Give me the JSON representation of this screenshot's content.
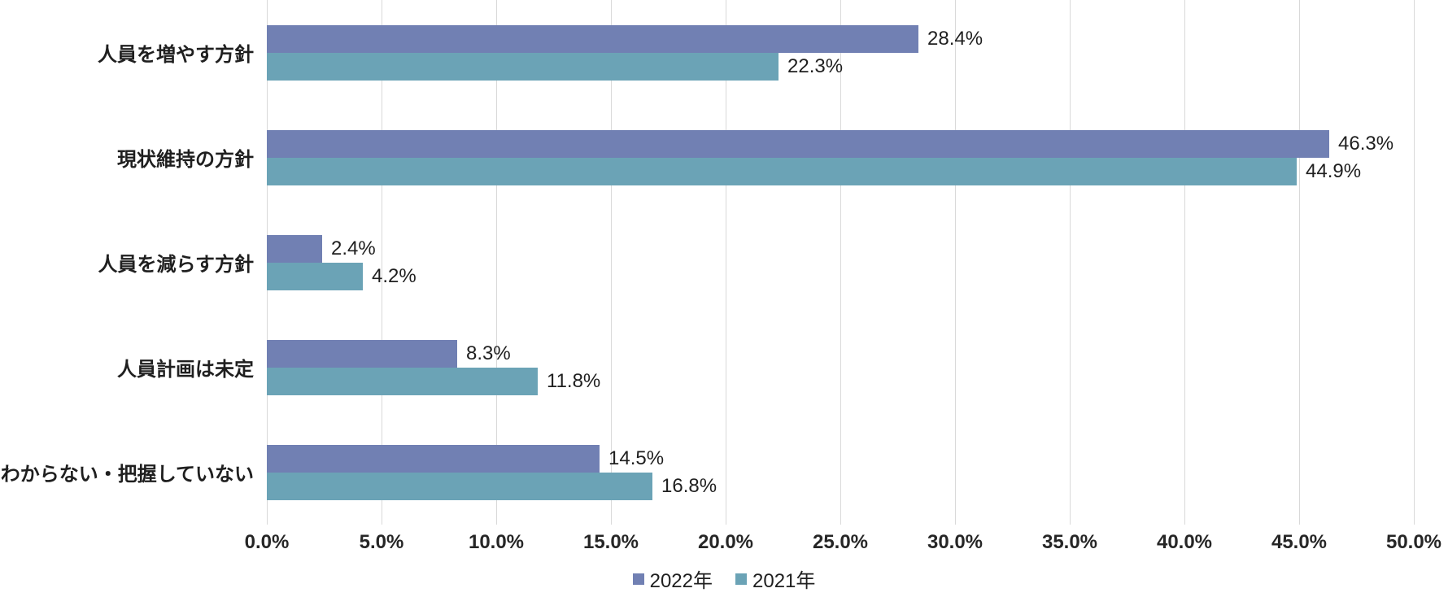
{
  "chart_data": {
    "type": "bar",
    "orientation": "horizontal",
    "title": "",
    "xlabel": "",
    "ylabel": "",
    "categories": [
      "人員を増やす方針",
      "現状維持の方針",
      "人員を減らす方針",
      "人員計画は未定",
      "わからない・把握していない"
    ],
    "series": [
      {
        "name": "2022年",
        "color": "#7180B3",
        "values": [
          28.4,
          46.3,
          2.4,
          8.3,
          14.5
        ]
      },
      {
        "name": "2021年",
        "color": "#6BA3B6",
        "values": [
          22.3,
          44.9,
          4.2,
          11.8,
          16.8
        ]
      }
    ],
    "data_labels": {
      "2022": [
        "28.4%",
        "46.3%",
        "2.4%",
        "8.3%",
        "14.5%"
      ],
      "2021": [
        "22.3%",
        "44.9%",
        "4.2%",
        "11.8%",
        "16.8%"
      ]
    },
    "value_suffix": "%",
    "xlim": [
      0,
      50
    ],
    "x_ticks": [
      "0.0%",
      "5.0%",
      "10.0%",
      "15.0%",
      "20.0%",
      "25.0%",
      "30.0%",
      "35.0%",
      "40.0%",
      "45.0%",
      "50.0%"
    ],
    "grid": true,
    "gridline_color": "#d9d9d9",
    "legend_position": "bottom",
    "legend": [
      "2022年",
      "2021年"
    ],
    "text_color": "#1f1f1f"
  }
}
